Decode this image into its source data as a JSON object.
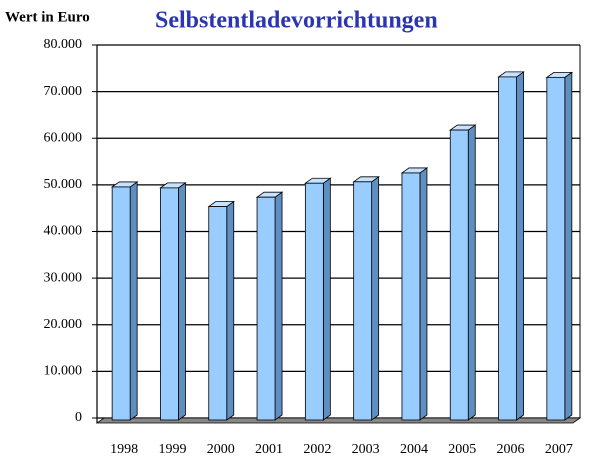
{
  "chart_data": {
    "type": "bar3d",
    "title": "Selbstentladevorrichtungen",
    "ylabel": "Wert in Euro",
    "categories": [
      "1998",
      "1999",
      "2000",
      "2001",
      "2002",
      "2003",
      "2004",
      "2005",
      "2006",
      "2007"
    ],
    "values": [
      50200,
      50000,
      46000,
      48000,
      51000,
      51300,
      53200,
      62400,
      73800,
      73700
    ],
    "color": "#99ccff",
    "ylim": [
      0,
      80000
    ],
    "yticks": [
      0,
      {
        "value": 10000,
        "label": "10.000"
      },
      {
        "value": 20000,
        "label": "20.000"
      },
      {
        "value": 30000,
        "label": "30.000"
      },
      {
        "value": 40000,
        "label": "40.000"
      },
      {
        "value": 50000,
        "label": "50.000"
      },
      {
        "value": 60000,
        "label": "60.000"
      },
      {
        "value": 70000,
        "label": "70.000"
      },
      {
        "value": 80000,
        "label": "80.000"
      }
    ],
    "grid": true
  }
}
